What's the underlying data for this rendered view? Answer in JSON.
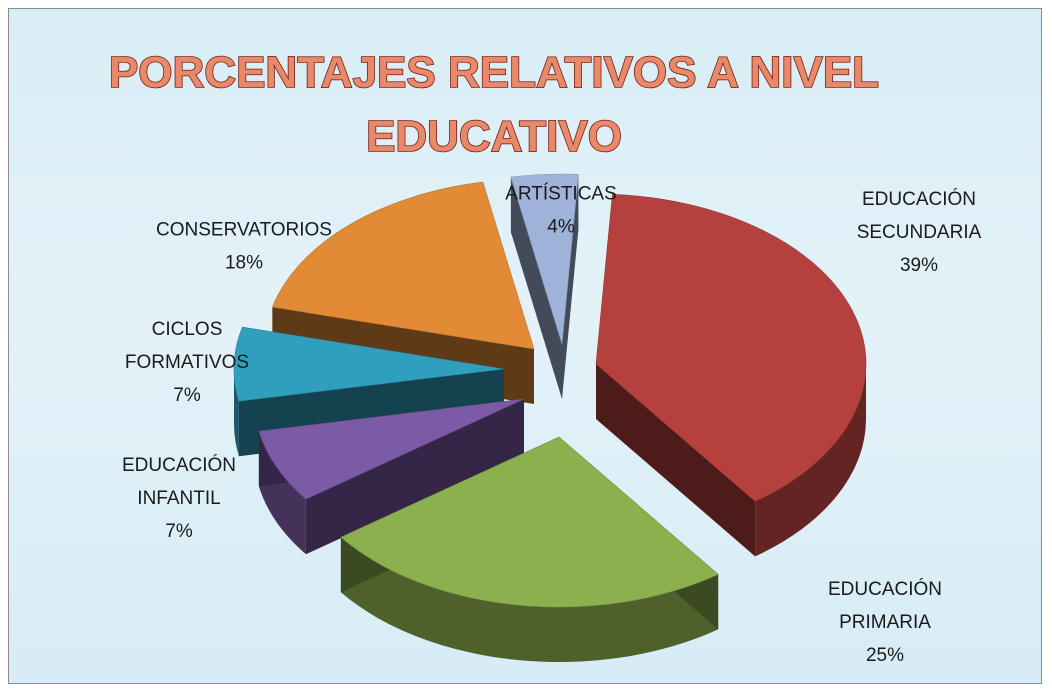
{
  "chart_data": {
    "type": "pie",
    "title": "PORCENTAJES RELATIVOS A NIVEL EDUCATIVO",
    "title_lines": [
      "PORCENTAJES RELATIVOS A NIVEL",
      "EDUCATIVO"
    ],
    "three_d": true,
    "exploded": true,
    "legend": "none",
    "slices": [
      {
        "label": "EDUCACIÓN SECUNDARIA",
        "label_lines": [
          "EDUCACIÓN",
          "SECUNDARIA"
        ],
        "value": 39,
        "value_label": "39%",
        "color": "#b5413f"
      },
      {
        "label": "EDUCACIÓN PRIMARIA",
        "label_lines": [
          "EDUCACIÓN",
          "PRIMARIA"
        ],
        "value": 25,
        "value_label": "25%",
        "color": "#8db04e"
      },
      {
        "label": "EDUCACIÓN INFANTIL",
        "label_lines": [
          "EDUCACIÓN",
          "INFANTIL"
        ],
        "value": 7,
        "value_label": "7%",
        "color": "#7b5aa6"
      },
      {
        "label": "CICLOS FORMATIVOS",
        "label_lines": [
          "CICLOS",
          "FORMATIVOS"
        ],
        "value": 7,
        "value_label": "7%",
        "color": "#2f9fbd"
      },
      {
        "label": "CONSERVATORIOS",
        "label_lines": [
          "CONSERVATORIOS"
        ],
        "value": 18,
        "value_label": "18%",
        "color": "#e28a35"
      },
      {
        "label": "ARTÍSTICAS",
        "label_lines": [
          "ARTÍSTICAS"
        ],
        "value": 4,
        "value_label": "4%",
        "color": "#9fb3d9"
      }
    ]
  }
}
